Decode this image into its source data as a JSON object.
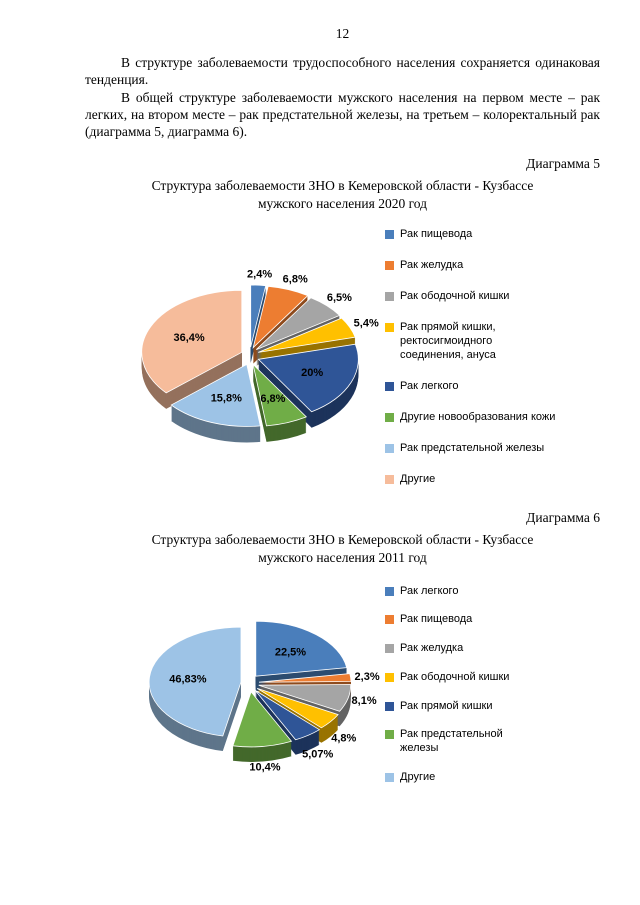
{
  "page": {
    "number": "12",
    "paragraphs": [
      "В структуре заболеваемости трудоспособного населения сохраняется одинаковая тенденция.",
      "В общей структуре заболеваемости мужского населения на первом месте – рак легких, на втором месте – рак предстательной железы, на третьем – колоректальный рак (диаграмма 5, диаграмма 6)."
    ]
  },
  "chart_data": [
    {
      "type": "pie",
      "caption": "Диаграмма 5",
      "title": "Структура заболеваемости ЗНО в Кемеровской области - Кузбассе мужского населения 2020 год",
      "title_lines": [
        "Структура заболеваемости ЗНО в Кемеровской области - Кузбассе",
        "мужского населения 2020 год"
      ],
      "labels": [
        "Рак пищевода",
        "Рак желудка",
        "Рак ободочной кишки",
        "Рак прямой кишки, ректосигмоидного соединения, ануса",
        "Рак легкого",
        "Другие новообразования кожи",
        "Рак предстательной железы",
        "Другие"
      ],
      "values": [
        2.4,
        6.8,
        6.5,
        5.4,
        20,
        6.8,
        15.8,
        36.4
      ],
      "value_labels": [
        "2,4%",
        "6,8%",
        "6,5%",
        "5,4%",
        "20%",
        "6,8%",
        "15,8%",
        "36,4%"
      ],
      "colors": [
        "#4A7EBB",
        "#ED7D31",
        "#A5A5A5",
        "#FFC000",
        "#2F5597",
        "#70AD47",
        "#9DC3E6",
        "#F6BC9B"
      ],
      "legend_position": "right"
    },
    {
      "type": "pie",
      "caption": "Диаграмма 6",
      "title": "Структура заболеваемости ЗНО в Кемеровской области - Кузбассе мужского населения 2011 год",
      "title_lines": [
        "Структура заболеваемости ЗНО в Кемеровской области - Кузбассе",
        "мужского населения 2011 год"
      ],
      "labels": [
        "Рак легкого",
        "Рак пищевода",
        "Рак желудка",
        "Рак ободочной кишки",
        "Рак прямой кишки",
        "Рак предстательной железы",
        "Другие"
      ],
      "values": [
        22.5,
        2.3,
        8.1,
        4.8,
        5.07,
        10.4,
        46.83
      ],
      "value_labels": [
        "22,5%",
        "2,3%",
        "8,1%",
        "4,8%",
        "5,07%",
        "10,4%",
        "46,83%"
      ],
      "colors": [
        "#4A7EBB",
        "#ED7D31",
        "#A5A5A5",
        "#FFC000",
        "#2F5597",
        "#70AD47",
        "#9DC3E6"
      ],
      "legend_position": "right"
    }
  ]
}
